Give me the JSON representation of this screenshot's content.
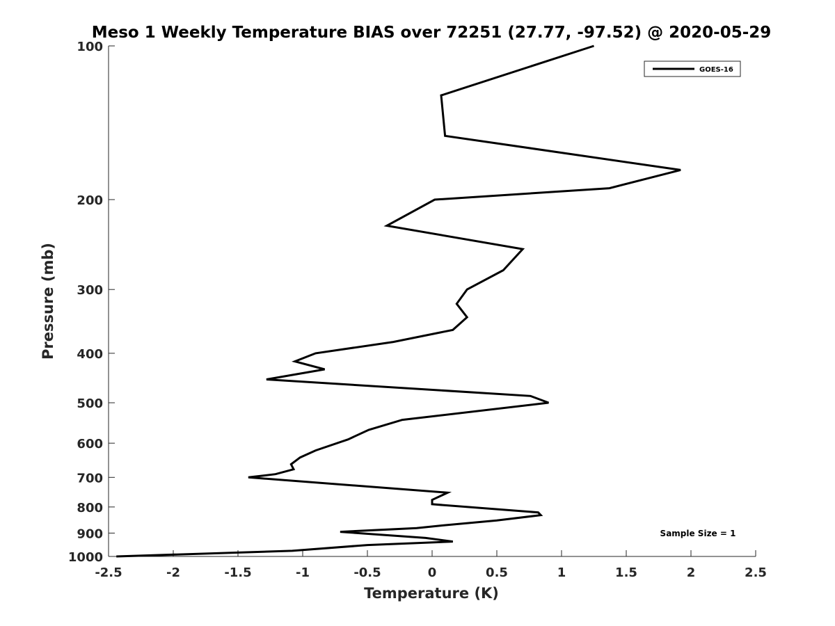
{
  "chart_data": {
    "type": "line",
    "title": "Meso 1 Weekly Temperature BIAS over 72251 (27.77, -97.52) @ 2020-05-29",
    "xlabel": "Temperature (K)",
    "ylabel": "Pressure (mb)",
    "xlim": [
      -2.5,
      2.5
    ],
    "ylim": [
      100,
      1000
    ],
    "y_scale": "log",
    "y_reversed": true,
    "x_ticks": [
      "-2.5",
      "-2",
      "-1.5",
      "-1",
      "-0.5",
      "0",
      "0.5",
      "1",
      "1.5",
      "2",
      "2.5"
    ],
    "x_tick_values": [
      -2.5,
      -2,
      -1.5,
      -1,
      -0.5,
      0,
      0.5,
      1,
      1.5,
      2,
      2.5
    ],
    "y_ticks": [
      "100",
      "200",
      "300",
      "400",
      "500",
      "600",
      "700",
      "800",
      "900",
      "1000"
    ],
    "y_tick_values": [
      100,
      200,
      300,
      400,
      500,
      600,
      700,
      800,
      900,
      1000
    ],
    "grid": false,
    "legend_position": "top-right",
    "annotation": "Sample Size = 1",
    "series": [
      {
        "name": "GOES-16",
        "color": "#000000",
        "points": [
          [
            1.25,
            100
          ],
          [
            0.07,
            125
          ],
          [
            0.1,
            150
          ],
          [
            1.92,
            175
          ],
          [
            1.37,
            190
          ],
          [
            0.02,
            200
          ],
          [
            -0.35,
            225
          ],
          [
            0.7,
            250
          ],
          [
            0.55,
            275
          ],
          [
            0.27,
            300
          ],
          [
            0.19,
            320
          ],
          [
            0.27,
            340
          ],
          [
            0.16,
            360
          ],
          [
            -0.3,
            380
          ],
          [
            -0.9,
            400
          ],
          [
            -1.06,
            415
          ],
          [
            -0.83,
            430
          ],
          [
            -1.28,
            450
          ],
          [
            0.76,
            485
          ],
          [
            0.9,
            500
          ],
          [
            -0.23,
            540
          ],
          [
            -0.49,
            565
          ],
          [
            -0.65,
            590
          ],
          [
            -0.9,
            620
          ],
          [
            -1.02,
            640
          ],
          [
            -1.09,
            660
          ],
          [
            -1.07,
            675
          ],
          [
            -1.21,
            690
          ],
          [
            -1.42,
            700
          ],
          [
            0.12,
            750
          ],
          [
            0.0,
            775
          ],
          [
            0.0,
            790
          ],
          [
            0.82,
            820
          ],
          [
            0.84,
            830
          ],
          [
            0.5,
            850
          ],
          [
            0.07,
            870
          ],
          [
            -0.12,
            880
          ],
          [
            -0.71,
            895
          ],
          [
            -0.05,
            920
          ],
          [
            0.16,
            935
          ],
          [
            -0.5,
            950
          ],
          [
            -1.08,
            975
          ],
          [
            -2.44,
            1000
          ]
        ]
      }
    ]
  }
}
